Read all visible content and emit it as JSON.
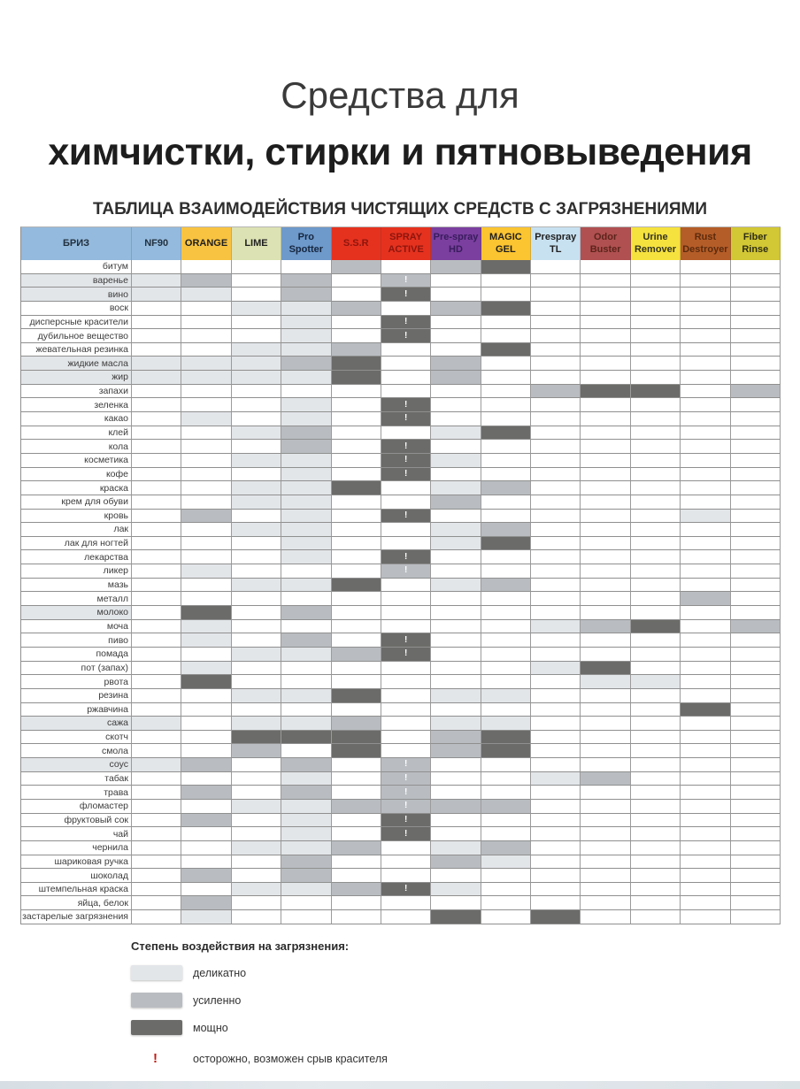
{
  "page": {
    "title_line1": "Средства для",
    "title_line2": "химчистки, стирки и пятновыведения",
    "subtitle": "ТАБЛИЦА ВЗАИМОДЕЙСТВИЯ ЧИСТЯЩИХ СРЕДСТВ С ЗАГРЯЗНЕНИЯМИ"
  },
  "legend": {
    "title": "Степень воздействия на загрязнения:",
    "items": [
      {
        "level": "1",
        "label": "деликатно",
        "color": "#E3E6E9"
      },
      {
        "level": "2",
        "label": "усиленно",
        "color": "#B9BDC1"
      },
      {
        "level": "3",
        "label": "мощно",
        "color": "#6B6B69"
      }
    ],
    "warning": {
      "symbol": "!",
      "label": "осторожно, возможен срыв красителя",
      "color": "#C11B14"
    }
  },
  "chart_data": {
    "type": "heatmap",
    "title": "ТАБЛИЦА ВЗАИМОДЕЙСТВИЯ ЧИСТЯЩИХ СРЕДСТВ С ЗАГРЯЗНЕНИЯМИ",
    "value_scale": {
      "": "нет воздействия",
      "1": "деликатно",
      "2": "усиленно",
      "3": "мощно",
      "!": "осторожно, возможен срыв красителя"
    },
    "note": "Первый столбец значений относится к колонке БРИЗ — заливка ячейки с названием загрязнения.",
    "columns": [
      {
        "label": "БРИЗ",
        "bg": "#94BADD",
        "fg": "#22313F"
      },
      {
        "label": "NF90",
        "bg": "#94BADD",
        "fg": "#22313F"
      },
      {
        "label": "ORANGE",
        "bg": "#F8C341",
        "fg": "#1f1f1f"
      },
      {
        "label": "LIME",
        "bg": "#DCE2B3",
        "fg": "#1f1f1f"
      },
      {
        "label": "Pro\nSpotter",
        "bg": "#6D99CB",
        "fg": "#16263E"
      },
      {
        "label": "S.S.R",
        "bg": "#E5321F",
        "fg": "#8D150D"
      },
      {
        "label": "SPRAY\nACTIVE",
        "bg": "#E5321F",
        "fg": "#8D150D"
      },
      {
        "label": "Pre-spray\nHD",
        "bg": "#7B3F9F",
        "fg": "#381C5C"
      },
      {
        "label": "MAGIC\nGEL",
        "bg": "#FBC431",
        "fg": "#1f1f1f"
      },
      {
        "label": "Prespray\nTL",
        "bg": "#C8E1F1",
        "fg": "#1f1f1f"
      },
      {
        "label": "Odor\nBuster",
        "bg": "#B05051",
        "fg": "#5C241B"
      },
      {
        "label": "Urine\nRemover",
        "bg": "#F6E23E",
        "fg": "#333320"
      },
      {
        "label": "Rust\nDestroyer",
        "bg": "#B55D28",
        "fg": "#5C2B0D"
      },
      {
        "label": "Fiber\nRinse",
        "bg": "#D2C734",
        "fg": "#2E2E14"
      }
    ],
    "rows": [
      "битум",
      "варенье",
      "вино",
      "воск",
      "дисперсные красители",
      "дубильное вещество",
      "жевательная резинка",
      "жидкие масла",
      "жир",
      "запахи",
      "зеленка",
      "какао",
      "клей",
      "кола",
      "косметика",
      "кофе",
      "краска",
      "крем для обуви",
      "кровь",
      "лак",
      "лак для ногтей",
      "лекарства",
      "ликер",
      "мазь",
      "металл",
      "молоко",
      "моча",
      "пиво",
      "помада",
      "пот (запах)",
      "рвота",
      "резина",
      "ржавчина",
      "сажа",
      "скотч",
      "смола",
      "соус",
      "табак",
      "трава",
      "фломастер",
      "фруктовый сок",
      "чай",
      "чернила",
      "шариковая ручка",
      "шоколад",
      "штемпельная краска",
      "яйца, белок",
      "застарелые загрязнения"
    ],
    "values": [
      [
        "",
        "",
        "",
        "",
        "",
        "2",
        "",
        "2",
        "3",
        "",
        "",
        "",
        "",
        ""
      ],
      [
        "1",
        "1",
        "2",
        "",
        "2",
        "",
        "2!",
        "",
        "",
        "",
        "",
        "",
        "",
        ""
      ],
      [
        "1",
        "1",
        "1",
        "",
        "2",
        "",
        "3!",
        "",
        "",
        "",
        "",
        "",
        "",
        ""
      ],
      [
        "",
        "",
        "",
        "1",
        "1",
        "2",
        "",
        "2",
        "3",
        "",
        "",
        "",
        "",
        ""
      ],
      [
        "",
        "",
        "",
        "",
        "1",
        "",
        "3!",
        "",
        "",
        "",
        "",
        "",
        "",
        ""
      ],
      [
        "",
        "",
        "",
        "",
        "1",
        "",
        "3!",
        "",
        "",
        "",
        "",
        "",
        "",
        ""
      ],
      [
        "",
        "",
        "",
        "1",
        "1",
        "2",
        "",
        "",
        "3",
        "",
        "",
        "",
        "",
        ""
      ],
      [
        "1",
        "1",
        "1",
        "1",
        "2",
        "3",
        "",
        "2",
        "",
        "",
        "",
        "",
        "",
        ""
      ],
      [
        "1",
        "1",
        "1",
        "1",
        "1",
        "3",
        "",
        "2",
        "",
        "",
        "",
        "",
        "",
        ""
      ],
      [
        "",
        "",
        "",
        "",
        "",
        "",
        "",
        "",
        "",
        "2",
        "3",
        "3",
        "",
        "2"
      ],
      [
        "",
        "",
        "",
        "",
        "1",
        "",
        "3!",
        "",
        "",
        "",
        "",
        "",
        "",
        ""
      ],
      [
        "",
        "",
        "1",
        "",
        "1",
        "",
        "3!",
        "",
        "",
        "",
        "",
        "",
        "",
        ""
      ],
      [
        "",
        "",
        "",
        "1",
        "2",
        "",
        "",
        "1",
        "3",
        "",
        "",
        "",
        "",
        ""
      ],
      [
        "",
        "",
        "",
        "",
        "2",
        "",
        "3!",
        "",
        "",
        "",
        "",
        "",
        "",
        ""
      ],
      [
        "",
        "",
        "",
        "1",
        "1",
        "",
        "3!",
        "1",
        "",
        "",
        "",
        "",
        "",
        ""
      ],
      [
        "",
        "",
        "",
        "",
        "1",
        "",
        "3!",
        "",
        "",
        "",
        "",
        "",
        "",
        ""
      ],
      [
        "",
        "",
        "",
        "1",
        "1",
        "3",
        "",
        "1",
        "2",
        "",
        "",
        "",
        "",
        ""
      ],
      [
        "",
        "",
        "",
        "1",
        "1",
        "",
        "",
        "2",
        "",
        "",
        "",
        "",
        "",
        ""
      ],
      [
        "",
        "",
        "2",
        "",
        "1",
        "",
        "3!",
        "",
        "",
        "",
        "",
        "",
        "1",
        ""
      ],
      [
        "",
        "",
        "",
        "1",
        "1",
        "",
        "",
        "1",
        "2",
        "",
        "",
        "",
        "",
        ""
      ],
      [
        "",
        "",
        "",
        "",
        "1",
        "",
        "",
        "1",
        "3",
        "",
        "",
        "",
        "",
        ""
      ],
      [
        "",
        "",
        "",
        "",
        "1",
        "",
        "3!",
        "",
        "",
        "",
        "",
        "",
        "",
        ""
      ],
      [
        "",
        "",
        "1",
        "",
        "",
        "",
        "2!",
        "",
        "",
        "",
        "",
        "",
        "",
        ""
      ],
      [
        "",
        "",
        "",
        "1",
        "1",
        "3",
        "",
        "1",
        "2",
        "",
        "",
        "",
        "",
        ""
      ],
      [
        "",
        "",
        "",
        "",
        "",
        "",
        "",
        "",
        "",
        "",
        "",
        "",
        "2",
        ""
      ],
      [
        "1",
        "",
        "3",
        "",
        "2",
        "",
        "",
        "",
        "",
        "",
        "",
        "",
        "",
        ""
      ],
      [
        "",
        "",
        "1",
        "",
        "",
        "",
        "",
        "",
        "",
        "1",
        "2",
        "3",
        "",
        "2"
      ],
      [
        "",
        "",
        "1",
        "",
        "2",
        "",
        "3!",
        "",
        "",
        "",
        "",
        "",
        "",
        ""
      ],
      [
        "",
        "",
        "",
        "1",
        "1",
        "2",
        "3!",
        "",
        "",
        "",
        "",
        "",
        "",
        ""
      ],
      [
        "",
        "",
        "1",
        "",
        "",
        "",
        "",
        "",
        "",
        "1",
        "3",
        "",
        "",
        ""
      ],
      [
        "",
        "",
        "3",
        "",
        "",
        "",
        "",
        "",
        "",
        "",
        "1",
        "1",
        "",
        ""
      ],
      [
        "",
        "",
        "",
        "1",
        "1",
        "3",
        "",
        "1",
        "1",
        "",
        "",
        "",
        "",
        ""
      ],
      [
        "",
        "",
        "",
        "",
        "",
        "",
        "",
        "",
        "",
        "",
        "",
        "",
        "3",
        ""
      ],
      [
        "1",
        "1",
        "",
        "1",
        "1",
        "2",
        "",
        "1",
        "1",
        "",
        "",
        "",
        "",
        ""
      ],
      [
        "",
        "",
        "",
        "3",
        "3",
        "3",
        "",
        "2",
        "3",
        "",
        "",
        "",
        "",
        ""
      ],
      [
        "",
        "",
        "",
        "2",
        "",
        "3",
        "",
        "2",
        "3",
        "",
        "",
        "",
        "",
        ""
      ],
      [
        "1",
        "1",
        "2",
        "",
        "2",
        "",
        "2!",
        "",
        "",
        "",
        "",
        "",
        "",
        ""
      ],
      [
        "",
        "",
        "",
        "",
        "1",
        "",
        "2!",
        "",
        "",
        "1",
        "2",
        "",
        "",
        ""
      ],
      [
        "",
        "",
        "2",
        "",
        "2",
        "",
        "2!",
        "",
        "",
        "",
        "",
        "",
        "",
        ""
      ],
      [
        "",
        "",
        "",
        "1",
        "1",
        "2",
        "2!",
        "2",
        "2",
        "",
        "",
        "",
        "",
        ""
      ],
      [
        "",
        "",
        "2",
        "",
        "1",
        "",
        "3!",
        "",
        "",
        "",
        "",
        "",
        "",
        ""
      ],
      [
        "",
        "",
        "",
        "",
        "1",
        "",
        "3!",
        "",
        "",
        "",
        "",
        "",
        "",
        ""
      ],
      [
        "",
        "",
        "",
        "1",
        "1",
        "2",
        "",
        "1",
        "2",
        "",
        "",
        "",
        "",
        ""
      ],
      [
        "",
        "",
        "",
        "",
        "2",
        "",
        "",
        "2",
        "1",
        "",
        "",
        "",
        "",
        ""
      ],
      [
        "",
        "",
        "2",
        "",
        "2",
        "",
        "",
        "",
        "",
        "",
        "",
        "",
        "",
        ""
      ],
      [
        "",
        "",
        "",
        "1",
        "1",
        "2",
        "3!",
        "1",
        "",
        "",
        "",
        "",
        "",
        ""
      ],
      [
        "",
        "",
        "2",
        "",
        "",
        "",
        "",
        "",
        "",
        "",
        "",
        "",
        "",
        ""
      ],
      [
        "",
        "",
        "1",
        "",
        "",
        "",
        "",
        "3",
        "",
        "3",
        "",
        "",
        "",
        ""
      ]
    ]
  }
}
